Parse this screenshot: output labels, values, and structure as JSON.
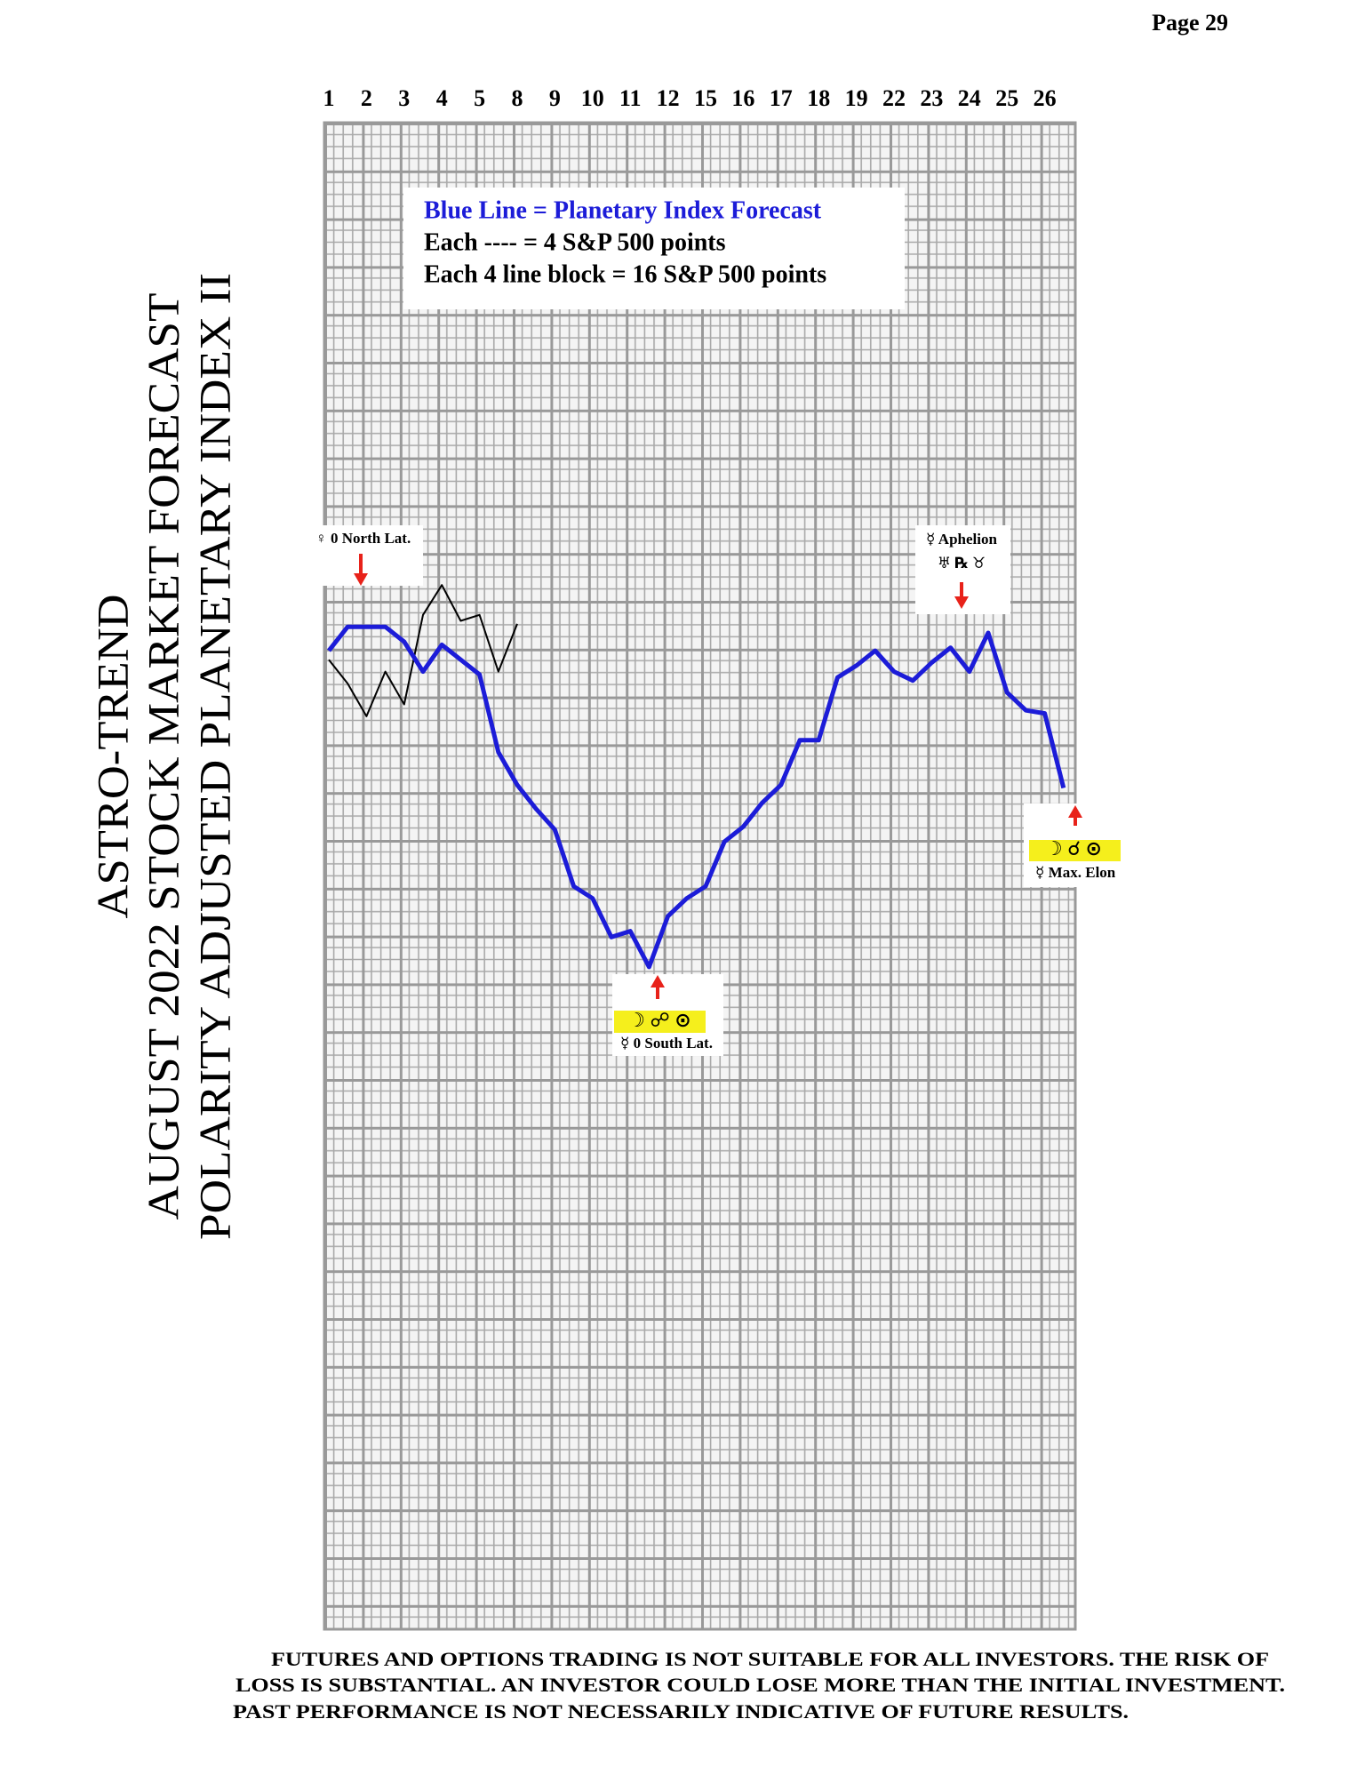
{
  "page_number": "Page 29",
  "title_lines": [
    "ASTRO-TREND",
    "AUGUST 2022  STOCK MARKET FORECAST",
    "POLARITY ADJUSTED PLANETARY INDEX II"
  ],
  "chart_data": {
    "type": "line",
    "categories": [
      "1",
      null,
      "2",
      null,
      "3",
      null,
      "4",
      null,
      "5",
      null,
      "8",
      null,
      "9",
      null,
      "10",
      null,
      "11",
      null,
      "12",
      null,
      "15",
      null,
      "16",
      null,
      "17",
      null,
      "18",
      null,
      "19",
      null,
      "22",
      null,
      "23",
      null,
      "24",
      null,
      "25",
      null,
      "26",
      null
    ],
    "series": [
      {
        "name": "Blue Line = Planetary Index Forecast",
        "color": "#1c1cd8",
        "values": [
          1,
          9,
          9,
          9,
          4,
          -6,
          3,
          -2,
          -7,
          -33,
          -44,
          -52,
          -59,
          -78,
          -82,
          -95,
          -93,
          -105,
          -88,
          -82,
          -78,
          -63,
          -58,
          -50,
          -44,
          -29,
          -29,
          -8,
          -4,
          1,
          -6,
          -9,
          -3,
          2,
          -6,
          7,
          -13,
          -19,
          -20,
          -45
        ]
      },
      {
        "color": "#000000",
        "values": [
          -2,
          -10,
          -21,
          -6,
          -17,
          13,
          23,
          11,
          13,
          -6,
          10,
          null,
          null,
          null,
          null,
          null,
          null,
          null,
          null,
          null,
          null,
          null,
          null,
          null,
          null,
          null,
          null,
          null,
          null,
          null,
          null,
          null,
          null,
          null,
          null,
          null,
          null,
          null,
          null,
          null
        ]
      }
    ],
    "ylim": [
      -327,
      178
    ],
    "legend_notes": [
      "Each ---- =   4 S&P 500 points",
      "Each 4 line block =  16  S&P 500 points"
    ],
    "annotations": [
      {
        "lines": [
          "♀ 0 North Lat."
        ]
      },
      {
        "lines": [
          "☿ Aphelion",
          "♅ ℞ ♉"
        ]
      },
      {
        "lines": [
          "☽ ☍ ⊙",
          "☿ 0 South Lat."
        ]
      },
      {
        "lines": [
          "☽ ☌ ⊙",
          "☿ Max. Elon"
        ]
      }
    ]
  },
  "disclaimer": [
    "FUTURES AND OPTIONS TRADING IS NOT SUITABLE FOR ALL INVESTORS.  THE RISK OF",
    "LOSS IS SUBSTANTIAL.  AN INVESTOR COULD LOSE MORE THAN THE INITIAL INVESTMENT.",
    "PAST PERFORMANCE IS NOT NECESSARILY INDICATIVE OF FUTURE RESULTS."
  ]
}
